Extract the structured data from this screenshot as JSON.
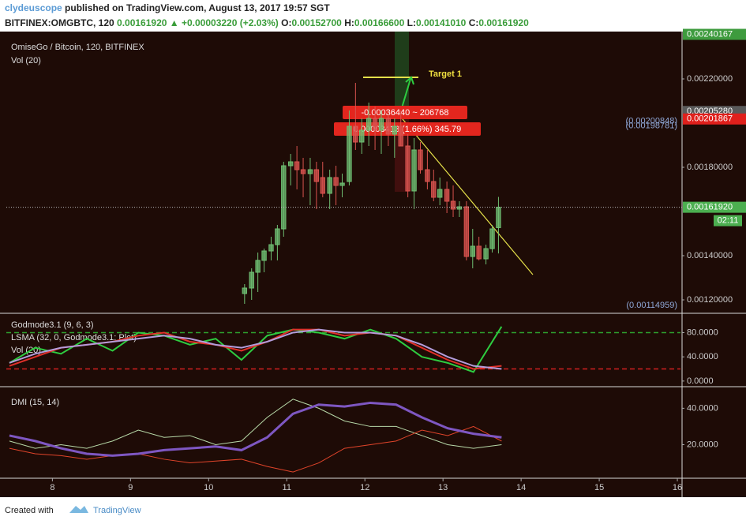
{
  "header": {
    "author": "clydeuscope",
    "published": "published on TradingView.com, August 13, 2017 19:57 SGT"
  },
  "symbol_line": {
    "symbol": "BITFINEX:OMGBTC, 120",
    "price": "0.00161920",
    "change": "▲ +0.00003220 (+2.03%)",
    "ohlc": [
      {
        "key": "O:",
        "value": "0.00152700"
      },
      {
        "key": "H:",
        "value": "0.00166600"
      },
      {
        "key": "L:",
        "value": "0.00141010"
      },
      {
        "key": "C:",
        "value": "0.00161920"
      }
    ]
  },
  "chart_data": [
    {
      "type": "candlestick",
      "title": "OmiseGo / Bitcoin, 120, BITFINEX",
      "subtitle": "Vol (20)",
      "x": [
        10.46,
        10.55,
        10.63,
        10.71,
        10.8,
        10.88,
        10.96,
        11.05,
        11.13,
        11.21,
        11.3,
        11.38,
        11.46,
        11.55,
        11.63,
        11.71,
        11.8,
        11.88,
        11.96,
        12.05,
        12.13,
        12.21,
        12.3,
        12.38,
        12.46,
        12.55,
        12.63,
        12.71,
        12.8,
        12.88,
        12.96,
        13.05,
        13.13,
        13.21,
        13.3,
        13.38,
        13.46,
        13.55,
        13.63,
        13.71
      ],
      "open": [
        0.0012286,
        0.0012536,
        0.001325,
        0.0013786,
        0.0014214,
        0.00145,
        0.0015214,
        0.0018071,
        0.001825,
        0.0017893,
        0.0017714,
        0.0017893,
        0.0017536,
        0.0016821,
        0.0017536,
        0.0017179,
        0.0017357,
        0.0019857,
        0.0019143,
        0.0019679,
        0.0020214,
        0.0019679,
        0.0020214,
        0.00195,
        0.0019857,
        0.0018964,
        0.0016929,
        0.0018786,
        0.0017893,
        0.0017357,
        0.0016643,
        0.0017,
        0.0016464,
        0.0016107,
        0.0016214,
        0.0013964,
        0.0014429,
        0.0013857,
        0.0014321,
        0.001527
      ],
      "high": [
        0.0012714,
        0.0013429,
        0.0014143,
        0.0014321,
        0.0014857,
        0.0015393,
        0.001825,
        0.0018607,
        0.0018964,
        0.0018429,
        0.0018429,
        0.001825,
        0.001825,
        0.0017893,
        0.0018071,
        0.0017714,
        0.0020571,
        0.0021821,
        0.0020214,
        0.0020929,
        0.002075,
        0.0020571,
        0.0020571,
        0.0020214,
        0.0020571,
        0.00195,
        0.0019321,
        0.0019143,
        0.0018786,
        0.0017893,
        0.0017536,
        0.0017357,
        0.0017179,
        0.0016464,
        0.0016464,
        0.0015214,
        0.0014857,
        0.00145,
        0.0015393,
        0.001666
      ],
      "low": [
        0.0011821,
        0.0012,
        0.0012357,
        0.001325,
        0.0013786,
        0.0013786,
        0.0014857,
        0.0017179,
        0.0017,
        0.0016643,
        0.0016286,
        0.0016107,
        0.0016643,
        0.0016107,
        0.0016286,
        0.0016643,
        0.0017179,
        0.0018786,
        0.0018607,
        0.0018964,
        0.0018786,
        0.0018607,
        0.0018964,
        0.0018429,
        0.0018964,
        0.0016643,
        0.0016107,
        0.0017714,
        0.0017,
        0.0016464,
        0.0016286,
        0.0015929,
        0.001575,
        0.001575,
        0.0013786,
        0.0013429,
        0.0013786,
        0.0013607,
        0.0014143,
        0.0014101
      ],
      "close": [
        0.0012536,
        0.001325,
        0.0013786,
        0.0014214,
        0.00145,
        0.0015214,
        0.0018071,
        0.001825,
        0.0017893,
        0.0017714,
        0.0017893,
        0.0017357,
        0.0016821,
        0.0017536,
        0.0017179,
        0.0017286,
        0.0019857,
        0.0019143,
        0.0019679,
        0.0020214,
        0.0019679,
        0.0020214,
        0.00195,
        0.0019857,
        0.0018964,
        0.0016929,
        0.0018786,
        0.0017893,
        0.0017357,
        0.0016643,
        0.0017,
        0.0016464,
        0.0016107,
        0.0016214,
        0.0013964,
        0.0014429,
        0.0013857,
        0.0014321,
        0.0015214,
        0.0016192
      ],
      "up_color": "#6fbf73",
      "down_color": "#d9534f",
      "xlim": [
        7.41,
        16.04
      ],
      "xticks": [
        8,
        9,
        10,
        11,
        12,
        13,
        14,
        15,
        16
      ],
      "ylim": [
        0.0011464,
        0.0024143
      ],
      "yticks": [
        {
          "value": 0.0012,
          "label": "0.00120000"
        },
        {
          "value": 0.0014,
          "label": "0.00140000"
        },
        {
          "value": 0.0018,
          "label": "0.00180000"
        },
        {
          "value": 0.0022,
          "label": "0.00220000"
        }
      ],
      "price_tags": [
        {
          "value": 0.00240167,
          "label": "0.00240167",
          "color": "#3e9b3e"
        },
        {
          "value": 0.0020528,
          "label": "0.00205280",
          "color": "#5a5a5a"
        },
        {
          "value": 0.00201867,
          "label": "0.00201867",
          "color": "#e0201c"
        },
        {
          "value": 0.0016192,
          "label": "0.00161920",
          "color": "#4caf50"
        }
      ],
      "countdown": "02:11",
      "price_notes": [
        {
          "value": 0.00200848,
          "label": "(0.00200848)"
        },
        {
          "value": 0.00198781,
          "label": "(0.00198781)"
        },
        {
          "value": 0.00114959,
          "label": "(0.00114959)"
        }
      ],
      "annotations": {
        "target": "Target 1",
        "range": "-0.00036440 ~ 206768",
        "change": "0.00003413 (1.66%) 345.79"
      }
    },
    {
      "type": "line",
      "legend": [
        "Godmode3.1 (9, 6, 3)",
        "LSMA (32, 0, Godmode3.1: Plot)",
        "Vol (20)"
      ],
      "x": [
        7.45,
        7.78,
        8.11,
        8.44,
        8.77,
        9.1,
        9.43,
        9.76,
        10.09,
        10.42,
        10.75,
        11.08,
        11.41,
        11.74,
        12.07,
        12.4,
        12.73,
        13.06,
        13.39,
        13.75
      ],
      "series": [
        {
          "color": "#2ecc40",
          "values": [
            30,
            55,
            45,
            70,
            50,
            80,
            75,
            60,
            70,
            35,
            75,
            85,
            80,
            70,
            85,
            70,
            40,
            30,
            15,
            90
          ]
        },
        {
          "color": "#e0302a",
          "values": [
            25,
            40,
            55,
            60,
            65,
            75,
            80,
            65,
            60,
            50,
            65,
            85,
            85,
            75,
            80,
            75,
            55,
            35,
            20,
            25
          ]
        },
        {
          "color": "#b39ddb",
          "values": [
            30,
            45,
            55,
            60,
            65,
            70,
            75,
            70,
            60,
            55,
            65,
            80,
            85,
            80,
            80,
            75,
            60,
            40,
            25,
            20
          ]
        }
      ],
      "levels": [
        {
          "value": 80,
          "color": "#2ea02e"
        },
        {
          "value": 20,
          "color": "#d02020"
        }
      ],
      "ylim": [
        -8,
        108
      ],
      "yticks": [
        {
          "value": 0,
          "label": "0.0000"
        },
        {
          "value": 40,
          "label": "40.0000"
        },
        {
          "value": 80,
          "label": "80.0000"
        }
      ]
    },
    {
      "type": "line",
      "title": "DMI (15, 14)",
      "x": [
        7.45,
        7.78,
        8.11,
        8.44,
        8.77,
        9.1,
        9.43,
        9.76,
        10.09,
        10.42,
        10.75,
        11.08,
        11.41,
        11.74,
        12.07,
        12.4,
        12.73,
        13.06,
        13.39,
        13.75
      ],
      "series": [
        {
          "color": "#b7d9a8",
          "width": 1,
          "values": [
            22,
            18,
            20,
            18,
            22,
            28,
            24,
            25,
            20,
            22,
            35,
            45,
            40,
            33,
            30,
            30,
            25,
            20,
            18,
            20
          ]
        },
        {
          "color": "#e0442a",
          "width": 1,
          "values": [
            18,
            15,
            14,
            12,
            14,
            15,
            12,
            10,
            11,
            12,
            8,
            5,
            10,
            18,
            20,
            22,
            28,
            25,
            30,
            22
          ]
        },
        {
          "color": "#7e57c2",
          "width": 3,
          "values": [
            25,
            22,
            18,
            15,
            14,
            15,
            17,
            18,
            19,
            17,
            24,
            37,
            42,
            41,
            43,
            42,
            35,
            29,
            26,
            24
          ]
        }
      ],
      "ylim": [
        2,
        51
      ],
      "yticks": [
        {
          "value": 20,
          "label": "20.0000"
        },
        {
          "value": 40,
          "label": "40.0000"
        }
      ]
    }
  ],
  "footer": {
    "created": "Created with",
    "brand": "TradingView"
  }
}
